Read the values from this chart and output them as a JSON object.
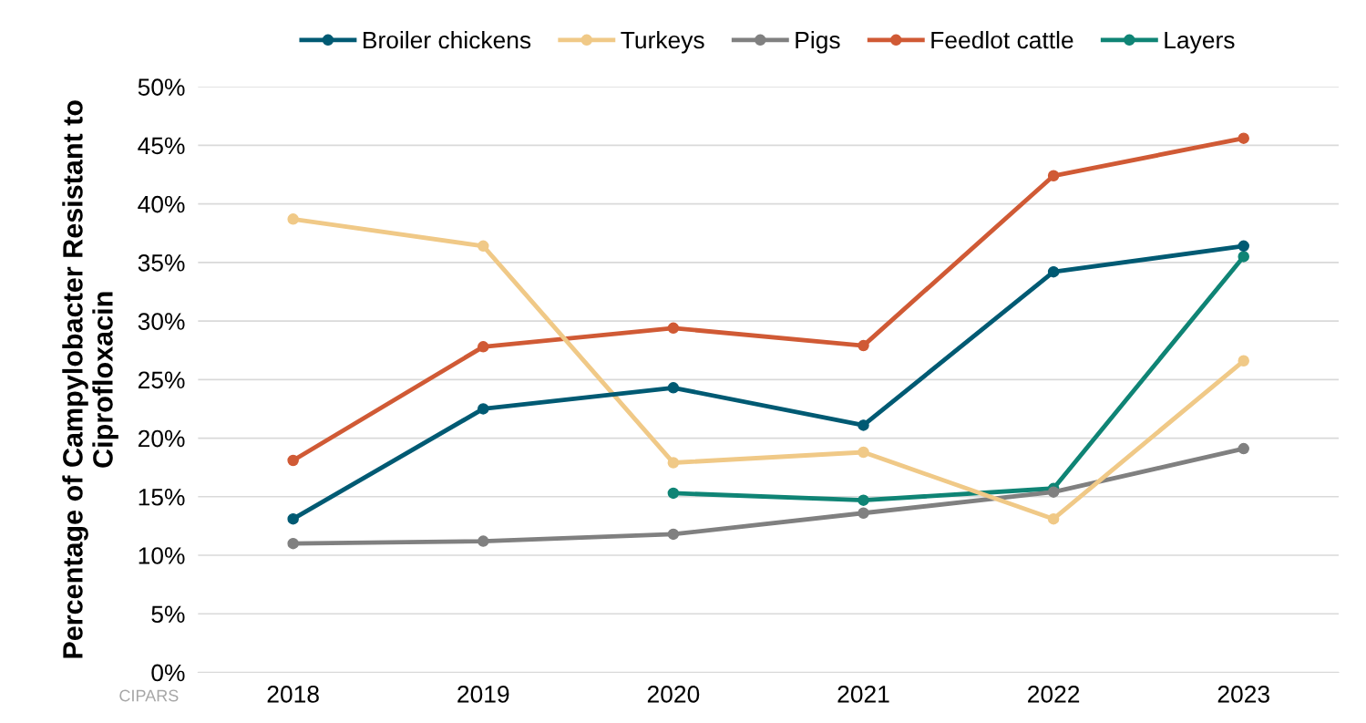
{
  "chart_data": {
    "type": "line",
    "ylabel": "Percentage of Campylobacter Resistant to\nCiprofloxacin",
    "categories": [
      "2018",
      "2019",
      "2020",
      "2021",
      "2022",
      "2023"
    ],
    "series": [
      {
        "name": "Broiler chickens",
        "color": "#005a73",
        "values": [
          13.1,
          22.5,
          24.3,
          21.1,
          34.2,
          36.4
        ]
      },
      {
        "name": "Turkeys",
        "color": "#f0c987",
        "values": [
          38.7,
          36.4,
          17.9,
          18.8,
          13.1,
          26.6
        ]
      },
      {
        "name": "Pigs",
        "color": "#808080",
        "values": [
          11.0,
          11.2,
          11.8,
          13.6,
          15.4,
          19.1
        ]
      },
      {
        "name": "Feedlot cattle",
        "color": "#d05a35",
        "values": [
          18.1,
          27.8,
          29.4,
          27.9,
          42.4,
          45.6
        ]
      },
      {
        "name": "Layers",
        "color": "#0f8475",
        "values": [
          null,
          null,
          15.3,
          14.7,
          15.7,
          35.5
        ]
      }
    ],
    "ylim": [
      0,
      50
    ],
    "yticks": [
      {
        "value": 0,
        "label": "0%"
      },
      {
        "value": 5,
        "label": "5%"
      },
      {
        "value": 10,
        "label": "10%"
      },
      {
        "value": 15,
        "label": "15%"
      },
      {
        "value": 20,
        "label": "20%"
      },
      {
        "value": 25,
        "label": "25%"
      },
      {
        "value": 30,
        "label": "30%"
      },
      {
        "value": 35,
        "label": "35%"
      },
      {
        "value": 40,
        "label": "40%"
      },
      {
        "value": 45,
        "label": "45%"
      },
      {
        "value": 50,
        "label": "50%"
      }
    ],
    "grid": "y",
    "legend": "top",
    "marker": "circle",
    "line_style": "solid",
    "annotations": [
      "CIPARS"
    ]
  }
}
